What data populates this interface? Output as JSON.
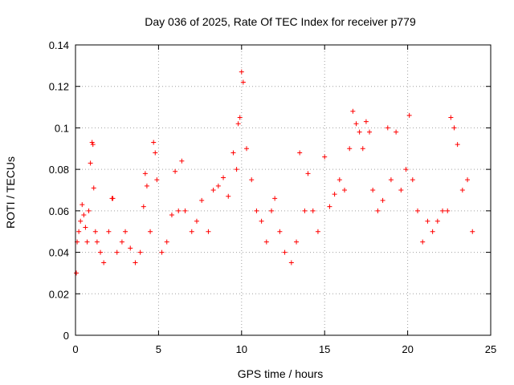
{
  "chart_data": {
    "type": "scatter",
    "title": "Day 036 of 2025, Rate Of TEC Index for receiver p779",
    "xlabel": "GPS time / hours",
    "ylabel": "ROTI / TECUs",
    "xlim": [
      0,
      25
    ],
    "ylim": [
      0,
      0.14
    ],
    "x_ticks": [
      "0",
      "5",
      "10",
      "15",
      "20",
      "25"
    ],
    "y_ticks": [
      "0",
      "0.02",
      "0.04",
      "0.06",
      "0.08",
      "0.1",
      "0.12",
      "0.14"
    ],
    "grid": true,
    "legend": "none",
    "marker": "+",
    "color": "#ff0000",
    "series": [
      {
        "x": [
          0.05,
          0.1,
          0.2,
          0.3,
          0.4,
          0.5,
          0.6,
          0.7,
          0.8,
          0.9,
          1.0,
          1.05,
          1.1,
          1.2,
          1.3,
          1.5,
          1.7,
          2.0,
          2.2,
          2.25,
          2.5,
          2.8,
          3.0,
          3.3,
          3.6,
          3.9,
          4.1,
          4.2,
          4.3,
          4.5,
          4.7,
          4.8,
          4.9,
          5.2,
          5.5,
          5.8,
          6.0,
          6.2,
          6.4,
          6.6,
          7.0,
          7.3,
          7.6,
          8.0,
          8.3,
          8.6,
          8.9,
          9.2,
          9.5,
          9.7,
          9.8,
          9.9,
          10.0,
          10.1,
          10.3,
          10.6,
          10.9,
          11.2,
          11.5,
          11.8,
          12.0,
          12.3,
          12.6,
          13.0,
          13.3,
          13.5,
          13.8,
          14.0,
          14.3,
          14.6,
          15.0,
          15.3,
          15.6,
          15.9,
          16.2,
          16.5,
          16.7,
          16.9,
          17.1,
          17.3,
          17.5,
          17.7,
          17.9,
          18.2,
          18.5,
          18.8,
          19.0,
          19.3,
          19.6,
          19.9,
          20.1,
          20.3,
          20.6,
          20.9,
          21.2,
          21.5,
          21.8,
          22.1,
          22.4,
          22.6,
          22.8,
          23.0,
          23.3,
          23.6,
          23.9
        ],
        "y": [
          0.03,
          0.045,
          0.05,
          0.055,
          0.063,
          0.058,
          0.052,
          0.045,
          0.06,
          0.083,
          0.093,
          0.092,
          0.071,
          0.05,
          0.045,
          0.04,
          0.035,
          0.05,
          0.066,
          0.066,
          0.04,
          0.045,
          0.05,
          0.042,
          0.035,
          0.04,
          0.062,
          0.078,
          0.072,
          0.05,
          0.093,
          0.088,
          0.075,
          0.04,
          0.045,
          0.058,
          0.079,
          0.06,
          0.084,
          0.06,
          0.05,
          0.055,
          0.065,
          0.05,
          0.07,
          0.072,
          0.076,
          0.067,
          0.088,
          0.08,
          0.102,
          0.105,
          0.127,
          0.122,
          0.09,
          0.075,
          0.06,
          0.055,
          0.045,
          0.06,
          0.066,
          0.05,
          0.04,
          0.035,
          0.045,
          0.088,
          0.06,
          0.078,
          0.06,
          0.05,
          0.086,
          0.062,
          0.068,
          0.075,
          0.07,
          0.09,
          0.108,
          0.102,
          0.098,
          0.09,
          0.103,
          0.098,
          0.07,
          0.06,
          0.065,
          0.1,
          0.075,
          0.098,
          0.07,
          0.08,
          0.106,
          0.075,
          0.06,
          0.045,
          0.055,
          0.05,
          0.055,
          0.06,
          0.06,
          0.105,
          0.1,
          0.092,
          0.07,
          0.075,
          0.05
        ]
      }
    ]
  }
}
